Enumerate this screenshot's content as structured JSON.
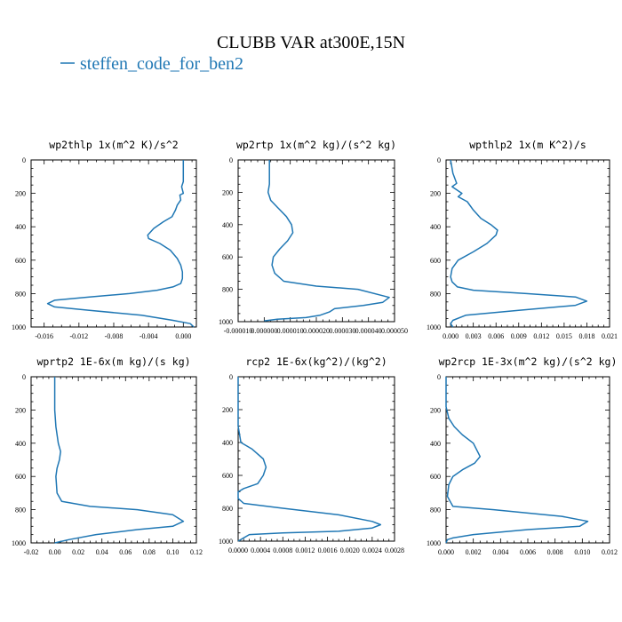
{
  "title": "CLUBB VAR at300E,15N",
  "legend": [
    {
      "label": "steffen_code_for_ben2",
      "color": "#1f77b4"
    }
  ],
  "chart_data": [
    {
      "type": "line",
      "title": "wp2thlp   1x(m^2 K)/s^2",
      "xlim": [
        -0.0175,
        0.0015
      ],
      "ylim": [
        1000,
        0
      ],
      "xticks": [
        -0.016,
        -0.012,
        -0.008,
        -0.004,
        0.0
      ],
      "xtick_labels": [
        "-0.016",
        "-0.012",
        "-0.008",
        "-0.004",
        "0.000"
      ],
      "yticks": [
        0,
        200,
        400,
        600,
        800,
        1000
      ],
      "ytick_labels": [
        "0",
        "200",
        "400",
        "600",
        "800",
        "1000"
      ],
      "series": [
        {
          "color": "#1f77b4",
          "x": [
            0.0,
            0.0,
            -0.0002,
            0.0,
            -0.0004,
            -0.0003,
            -0.0007,
            -0.0009,
            -0.0013,
            -0.0023,
            -0.0034,
            -0.0041,
            -0.004,
            -0.0027,
            -0.0015,
            -0.0007,
            -0.0003,
            -0.0001,
            -0.0001,
            -0.0003,
            -0.0012,
            -0.003,
            -0.0062,
            -0.0108,
            -0.0148,
            -0.0156,
            -0.0148,
            -0.0108,
            -0.0048,
            -0.0012,
            0.0008,
            0.0012
          ],
          "y": [
            0,
            130,
            160,
            200,
            210,
            240,
            270,
            300,
            340,
            370,
            410,
            450,
            470,
            500,
            540,
            590,
            630,
            670,
            710,
            740,
            760,
            780,
            800,
            820,
            840,
            860,
            880,
            900,
            930,
            960,
            980,
            1000
          ]
        }
      ]
    },
    {
      "type": "line",
      "title": "wp2rtp   1x(m^2 kg)/(s^2 kg)",
      "xlim": [
        -1e-05,
        5e-05
      ],
      "ylim": [
        1000,
        0
      ],
      "xticks": [
        -1e-05,
        0.0,
        1e-05,
        2e-05,
        3e-05,
        4e-05,
        5e-05
      ],
      "xtick_labels": [
        "-0.000010",
        "0.000000",
        "0.000010",
        "0.000020",
        "0.000030",
        "0.000040",
        "0.000050"
      ],
      "yticks": [
        0,
        200,
        400,
        600,
        800,
        1000
      ],
      "ytick_labels": [
        "0",
        "200",
        "400",
        "600",
        "800",
        "1000"
      ],
      "series": [
        {
          "color": "#1f77b4",
          "x": [
            2e-06,
            2e-06,
            1.5e-06,
            2.5e-06,
            5.5e-06,
            8.5e-06,
            1.05e-05,
            1.1e-05,
            9e-06,
            6e-06,
            3.5e-06,
            3e-06,
            4e-06,
            7.5e-06,
            2e-05,
            3.6e-05,
            4.8e-05,
            4.55e-05,
            3.8e-05,
            2.7e-05,
            2.5e-05,
            2.15e-05,
            1.6e-05,
            5e-06,
            0.0
          ],
          "y": [
            0,
            150,
            200,
            250,
            300,
            350,
            400,
            450,
            500,
            550,
            600,
            650,
            700,
            750,
            780,
            800,
            850,
            880,
            900,
            920,
            940,
            960,
            975,
            985,
            995
          ]
        }
      ]
    },
    {
      "type": "line",
      "title": "wpthlp2   1x(m K^2)/s",
      "xlim": [
        -0.0006,
        0.021
      ],
      "ylim": [
        1000,
        0
      ],
      "xticks": [
        0.0,
        0.003,
        0.006,
        0.009,
        0.012,
        0.015,
        0.018,
        0.021
      ],
      "xtick_labels": [
        "0.000",
        "0.003",
        "0.006",
        "0.009",
        "0.012",
        "0.015",
        "0.018",
        "0.021"
      ],
      "yticks": [
        0,
        200,
        400,
        600,
        800,
        1000
      ],
      "ytick_labels": [
        "0",
        "200",
        "400",
        "600",
        "800",
        "1000"
      ],
      "series": [
        {
          "color": "#1f77b4",
          "x": [
            0.0,
            0.0003,
            0.0008,
            0.0002,
            0.0015,
            0.001,
            0.0022,
            0.003,
            0.004,
            0.0054,
            0.0062,
            0.006,
            0.0048,
            0.003,
            0.001,
            0.0002,
            0.0,
            0.0002,
            0.0009,
            0.003,
            0.01,
            0.0165,
            0.018,
            0.0165,
            0.009,
            0.002,
            0.0003,
            0.0,
            0.0003
          ],
          "y": [
            0,
            80,
            140,
            160,
            200,
            220,
            250,
            300,
            350,
            390,
            420,
            450,
            500,
            550,
            600,
            650,
            700,
            730,
            760,
            780,
            800,
            820,
            845,
            870,
            900,
            930,
            960,
            980,
            1000
          ]
        }
      ]
    },
    {
      "type": "line",
      "title": "wprtp2   1E-6x(m kg)/(s kg)",
      "xlim": [
        -0.02,
        0.12
      ],
      "ylim": [
        1000,
        0
      ],
      "xticks": [
        -0.02,
        0.0,
        0.02,
        0.04,
        0.06,
        0.08,
        0.1,
        0.12
      ],
      "xtick_labels": [
        "-0.02",
        "0.00",
        "0.02",
        "0.04",
        "0.06",
        "0.08",
        "0.10",
        "0.12"
      ],
      "yticks": [
        0,
        200,
        400,
        600,
        800,
        1000
      ],
      "ytick_labels": [
        "0",
        "200",
        "400",
        "600",
        "800",
        "1000"
      ],
      "series": [
        {
          "color": "#1f77b4",
          "x": [
            0.0,
            0.0,
            0.001,
            0.003,
            0.005,
            0.004,
            0.002,
            0.001,
            0.002,
            0.006,
            0.03,
            0.07,
            0.1,
            0.109,
            0.1,
            0.07,
            0.035,
            0.012,
            0.0
          ],
          "y": [
            0,
            200,
            300,
            400,
            450,
            500,
            550,
            600,
            700,
            750,
            780,
            800,
            830,
            870,
            900,
            920,
            950,
            980,
            1000
          ]
        }
      ]
    },
    {
      "type": "line",
      "title": "rcp2   1E-6x(kg^2)/(kg^2)",
      "xlim": [
        0.0,
        0.0028
      ],
      "ylim": [
        1000,
        0
      ],
      "xticks": [
        0.0,
        0.0004,
        0.0008,
        0.0012,
        0.0016,
        0.002,
        0.0024,
        0.0028
      ],
      "xtick_labels": [
        "0.0000",
        "0.0004",
        "0.0008",
        "0.0012",
        "0.0016",
        "0.0020",
        "0.0024",
        "0.0028"
      ],
      "yticks": [
        0,
        200,
        400,
        600,
        800,
        1000
      ],
      "ytick_labels": [
        "0",
        "200",
        "400",
        "600",
        "800",
        "1000"
      ],
      "series": [
        {
          "color": "#1f77b4",
          "x": [
            0.0,
            0.0,
            5e-05,
            0.00025,
            0.00045,
            0.0005,
            0.00045,
            0.00035,
            0.0001,
            0.0,
            0.0,
            0.0001,
            0.0008,
            0.0018,
            0.0024,
            0.00255,
            0.0024,
            0.0018,
            0.0008,
            0.0002,
            0.0001,
            0.0
          ],
          "y": [
            0,
            300,
            400,
            440,
            500,
            550,
            600,
            650,
            680,
            700,
            740,
            770,
            800,
            840,
            880,
            900,
            920,
            940,
            950,
            960,
            980,
            1000
          ]
        }
      ]
    },
    {
      "type": "line",
      "title": "wp2rcp   1E-3x(m^2 kg)/(s^2 kg)",
      "xlim": [
        0.0,
        0.012
      ],
      "ylim": [
        1000,
        0
      ],
      "xticks": [
        0.0,
        0.002,
        0.004,
        0.006,
        0.008,
        0.01,
        0.012
      ],
      "xtick_labels": [
        "0.000",
        "0.002",
        "0.004",
        "0.006",
        "0.008",
        "0.010",
        "0.012"
      ],
      "yticks": [
        0,
        200,
        400,
        600,
        800,
        1000
      ],
      "ytick_labels": [
        "0",
        "200",
        "400",
        "600",
        "800",
        "1000"
      ],
      "series": [
        {
          "color": "#1f77b4",
          "x": [
            0.0,
            0.0,
            0.0002,
            0.0006,
            0.0012,
            0.002,
            0.0025,
            0.0021,
            0.0012,
            0.0005,
            0.0002,
            0.0001,
            0.0005,
            0.0035,
            0.0085,
            0.0104,
            0.0098,
            0.006,
            0.002,
            0.0005,
            0.0001,
            0.0
          ],
          "y": [
            0,
            180,
            250,
            300,
            350,
            400,
            480,
            520,
            560,
            600,
            650,
            720,
            780,
            800,
            840,
            870,
            900,
            920,
            950,
            970,
            980,
            1000
          ]
        }
      ]
    }
  ]
}
